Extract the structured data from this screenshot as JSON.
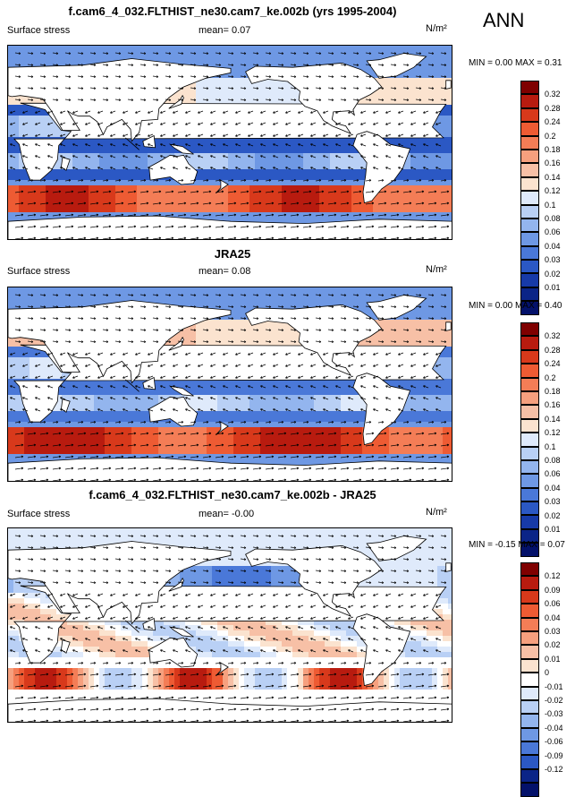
{
  "season": "ANN",
  "panels": [
    {
      "id": "model",
      "title": "f.cam6_4_032.FLTHIST_ne30.cam7_ke.002b (yrs 1995-2004)",
      "left_label": "Surface stress",
      "mean_text": "mean=  0.07",
      "units_text": "N/m²",
      "minmax_text": "MIN =  0.00 MAX =  0.31",
      "colorbar": {
        "colors": [
          "#7f0000",
          "#b81b0f",
          "#d8391b",
          "#ee5b33",
          "#f47d56",
          "#f6a07e",
          "#f7c0a6",
          "#fbe3cf",
          "#dfeafb",
          "#b9d0f5",
          "#93b5ee",
          "#6e98e4",
          "#4a78d8",
          "#2b58c4",
          "#173aa8",
          "#0b2487",
          "#03116a"
        ],
        "ticks": [
          "0.32",
          "0.28",
          "0.24",
          "0.2",
          "0.18",
          "0.16",
          "0.14",
          "0.12",
          "0.1",
          "0.08",
          "0.06",
          "0.04",
          "0.03",
          "0.02",
          "0.01"
        ]
      }
    },
    {
      "id": "obs",
      "title": "JRA25",
      "left_label": "Surface stress",
      "mean_text": "mean=  0.08",
      "units_text": "N/m²",
      "minmax_text": "MIN =  0.00 MAX =  0.40",
      "colorbar": {
        "colors": [
          "#7f0000",
          "#b81b0f",
          "#d8391b",
          "#ee5b33",
          "#f47d56",
          "#f6a07e",
          "#f7c0a6",
          "#fbe3cf",
          "#dfeafb",
          "#b9d0f5",
          "#93b5ee",
          "#6e98e4",
          "#4a78d8",
          "#2b58c4",
          "#173aa8",
          "#0b2487",
          "#03116a"
        ],
        "ticks": [
          "0.32",
          "0.28",
          "0.24",
          "0.2",
          "0.18",
          "0.16",
          "0.14",
          "0.12",
          "0.1",
          "0.08",
          "0.06",
          "0.04",
          "0.03",
          "0.02",
          "0.01"
        ]
      }
    },
    {
      "id": "diff",
      "title": "f.cam6_4_032.FLTHIST_ne30.cam7_ke.002b - JRA25",
      "left_label": "Surface stress",
      "mean_text": "mean=  -0.00",
      "units_text": "N/m²",
      "minmax_text": "MIN = -0.15 MAX =  0.07",
      "colorbar": {
        "colors": [
          "#7f0000",
          "#b81b0f",
          "#d8391b",
          "#ee5b33",
          "#f47d56",
          "#f6a07e",
          "#f7c0a6",
          "#fbe3cf",
          "#ffffff",
          "#dfeafb",
          "#b9d0f5",
          "#93b5ee",
          "#6e98e4",
          "#4a78d8",
          "#2b58c4",
          "#0b2487",
          "#03116a"
        ],
        "ticks": [
          "0.12",
          "0.09",
          "0.06",
          "0.04",
          "0.03",
          "0.02",
          "0.01",
          "0",
          "-0.01",
          "-0.02",
          "-0.03",
          "-0.04",
          "-0.06",
          "-0.09",
          "-0.12"
        ]
      }
    }
  ],
  "chart_data": {
    "type": "heatmap",
    "season": "ANN",
    "variable": "Surface stress",
    "units": "N/m²",
    "panels": [
      {
        "title": "f.cam6_4_032.FLTHIST_ne30.cam7_ke.002b (yrs 1995-2004)",
        "mean": 0.07,
        "min": 0.0,
        "max": 0.31,
        "levels": [
          0.01,
          0.02,
          0.03,
          0.04,
          0.06,
          0.08,
          0.1,
          0.12,
          0.14,
          0.16,
          0.18,
          0.2,
          0.24,
          0.28,
          0.32
        ]
      },
      {
        "title": "JRA25",
        "mean": 0.08,
        "min": 0.0,
        "max": 0.4,
        "levels": [
          0.01,
          0.02,
          0.03,
          0.04,
          0.06,
          0.08,
          0.1,
          0.12,
          0.14,
          0.16,
          0.18,
          0.2,
          0.24,
          0.28,
          0.32
        ]
      },
      {
        "title": "f.cam6_4_032.FLTHIST_ne30.cam7_ke.002b - JRA25",
        "mean": -0.0,
        "min": -0.15,
        "max": 0.07,
        "levels": [
          -0.12,
          -0.09,
          -0.06,
          -0.04,
          -0.03,
          -0.02,
          -0.01,
          0,
          0.01,
          0.02,
          0.03,
          0.04,
          0.06,
          0.09,
          0.12
        ]
      }
    ]
  }
}
